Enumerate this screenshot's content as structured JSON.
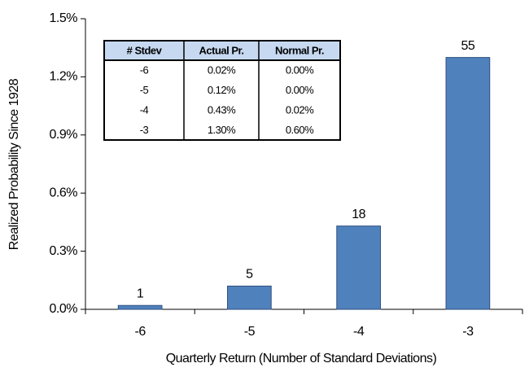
{
  "chart_data": {
    "type": "bar",
    "categories": [
      "-6",
      "-5",
      "-4",
      "-3"
    ],
    "values": [
      0.02,
      0.12,
      0.43,
      1.3
    ],
    "bar_labels": [
      1,
      5,
      18,
      55
    ],
    "color": "#4f81bd",
    "ylim": [
      0,
      1.5
    ],
    "yticks": [
      {
        "value": 0,
        "label": "0.0%"
      },
      {
        "value": 0.3,
        "label": "0.3%"
      },
      {
        "value": 0.6,
        "label": "0.6%"
      },
      {
        "value": 0.9,
        "label": "0.9%"
      },
      {
        "value": 1.2,
        "label": "1.2%"
      },
      {
        "value": 1.5,
        "label": "1.5%"
      }
    ],
    "x_label": "Quarterly Return (Number of Standard Deviations)",
    "y_label": "Realized Probability Since 1928",
    "grid": false,
    "table": {
      "header": [
        "# Stdev",
        "Actual Pr.",
        "Normal Pr."
      ],
      "rows": [
        [
          "-6",
          "0.02%",
          "0.00%"
        ],
        [
          "-5",
          "0.12%",
          "0.00%"
        ],
        [
          "-4",
          "0.43%",
          "0.02%"
        ],
        [
          "-3",
          "1.30%",
          "0.60%"
        ]
      ]
    }
  }
}
